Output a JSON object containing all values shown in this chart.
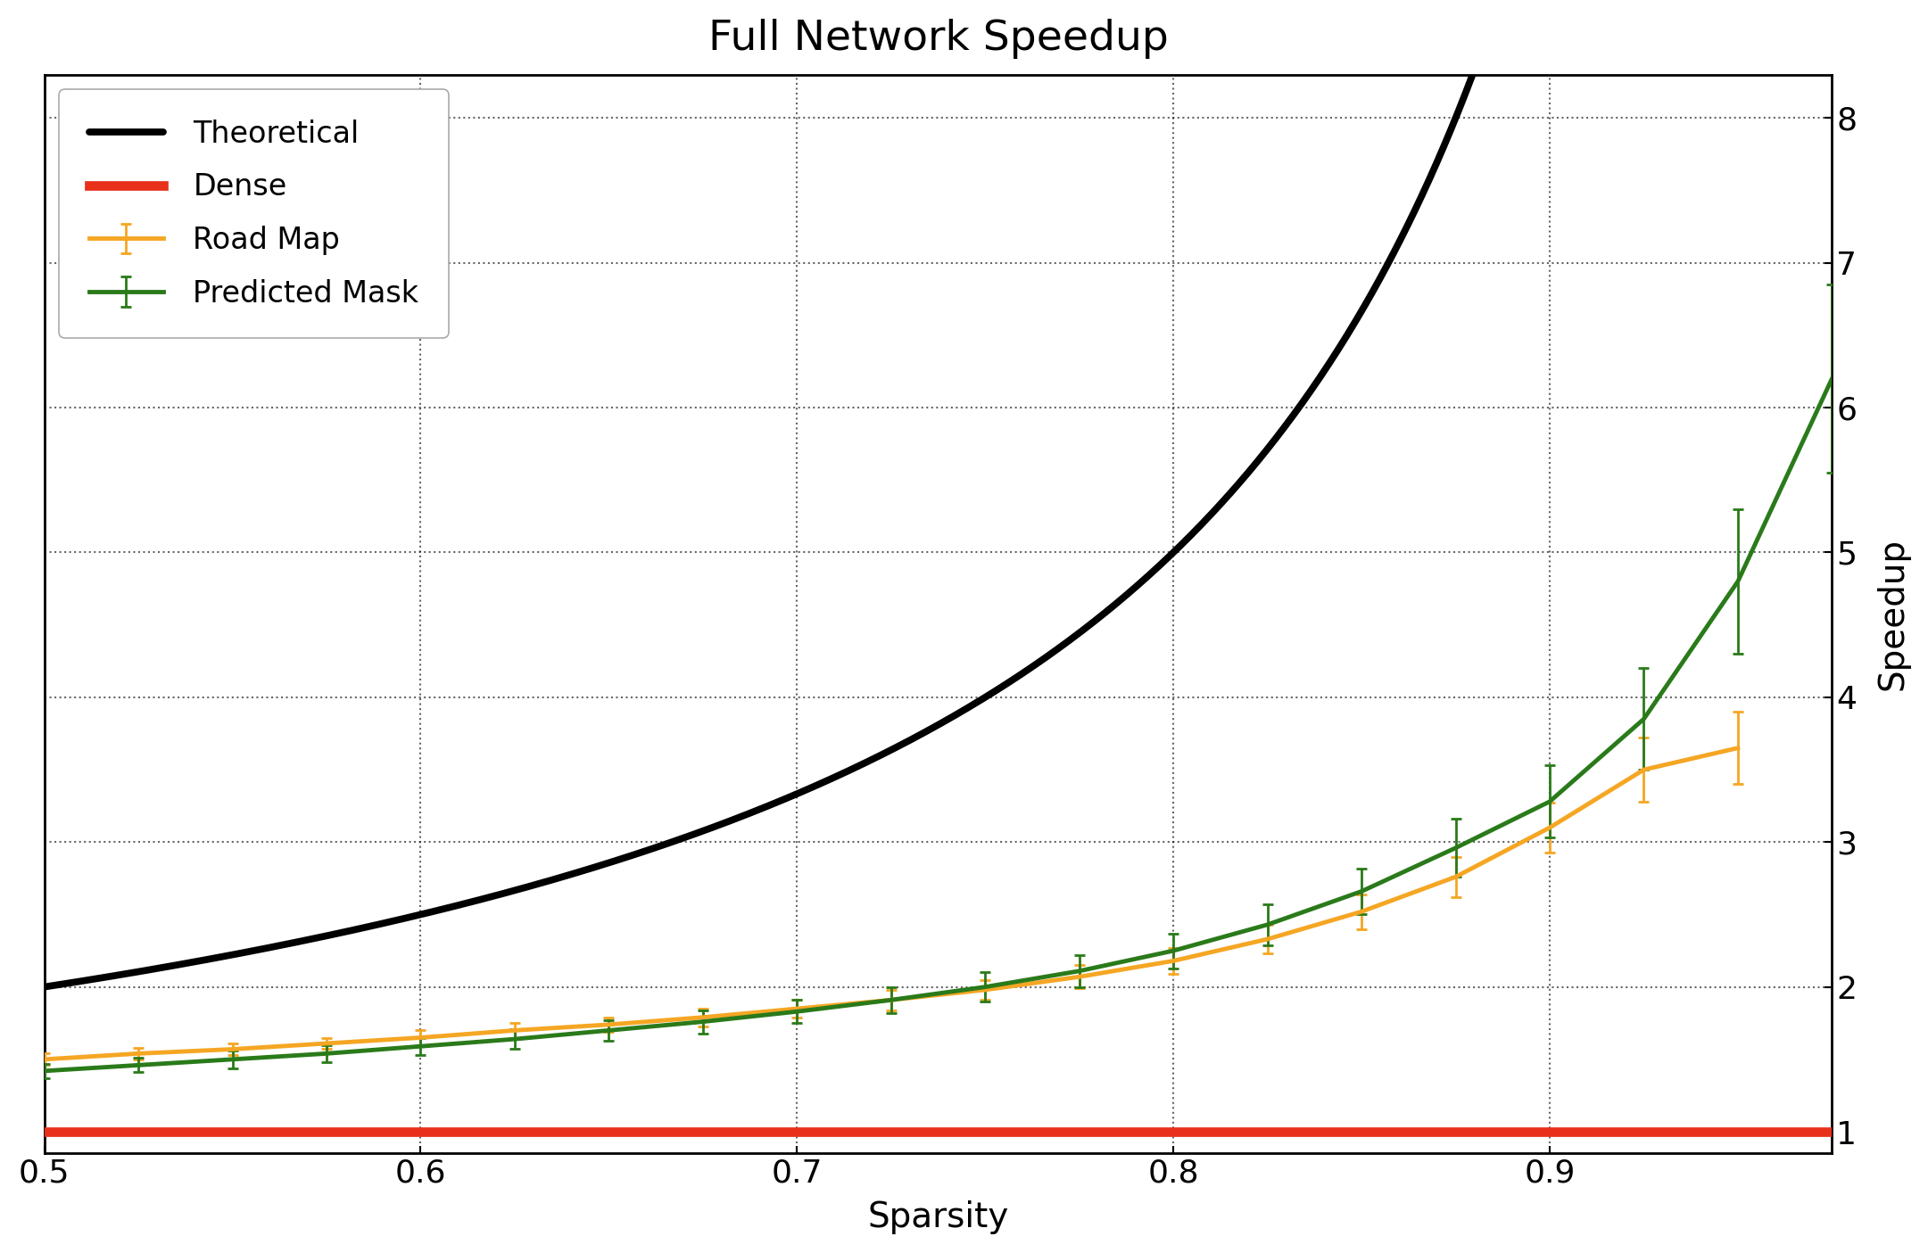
{
  "title": "Full Network Speedup",
  "xlabel": "Sparsity",
  "ylabel": "Speedup",
  "xlim": [
    0.5,
    0.975
  ],
  "ylim": [
    0.85,
    8.3
  ],
  "xticks": [
    0.5,
    0.6,
    0.7,
    0.8,
    0.9
  ],
  "yticks": [
    1,
    2,
    3,
    4,
    5,
    6,
    7,
    8
  ],
  "theoretical_color": "#000000",
  "dense_color": "#e8301a",
  "roadmap_color": "#f5a623",
  "predicted_color": "#2a7a1a",
  "dense_value": 1.0,
  "roadmap_x": [
    0.5,
    0.525,
    0.55,
    0.575,
    0.6,
    0.625,
    0.65,
    0.675,
    0.7,
    0.725,
    0.75,
    0.775,
    0.8,
    0.825,
    0.85,
    0.875,
    0.9,
    0.925,
    0.95
  ],
  "roadmap_y": [
    1.5,
    1.54,
    1.57,
    1.61,
    1.65,
    1.7,
    1.74,
    1.79,
    1.85,
    1.91,
    1.98,
    2.07,
    2.18,
    2.33,
    2.52,
    2.76,
    3.1,
    3.5,
    3.65
  ],
  "roadmap_err": [
    0.04,
    0.04,
    0.04,
    0.04,
    0.05,
    0.05,
    0.05,
    0.06,
    0.06,
    0.07,
    0.07,
    0.08,
    0.09,
    0.1,
    0.12,
    0.14,
    0.17,
    0.22,
    0.25
  ],
  "predicted_x": [
    0.5,
    0.525,
    0.55,
    0.575,
    0.6,
    0.625,
    0.65,
    0.675,
    0.7,
    0.725,
    0.75,
    0.775,
    0.8,
    0.825,
    0.85,
    0.875,
    0.9,
    0.925,
    0.95,
    0.975
  ],
  "predicted_y": [
    1.42,
    1.46,
    1.5,
    1.54,
    1.59,
    1.64,
    1.7,
    1.76,
    1.83,
    1.91,
    2.0,
    2.11,
    2.25,
    2.43,
    2.66,
    2.96,
    3.28,
    3.85,
    4.8,
    6.2
  ],
  "predicted_err": [
    0.05,
    0.05,
    0.06,
    0.06,
    0.06,
    0.07,
    0.07,
    0.08,
    0.08,
    0.09,
    0.1,
    0.11,
    0.12,
    0.14,
    0.16,
    0.2,
    0.25,
    0.35,
    0.5,
    0.65
  ],
  "line_width": 3.5,
  "error_line_width": 2.0,
  "capsize": 4,
  "title_fontsize": 34,
  "label_fontsize": 28,
  "tick_fontsize": 26,
  "legend_fontsize": 24
}
